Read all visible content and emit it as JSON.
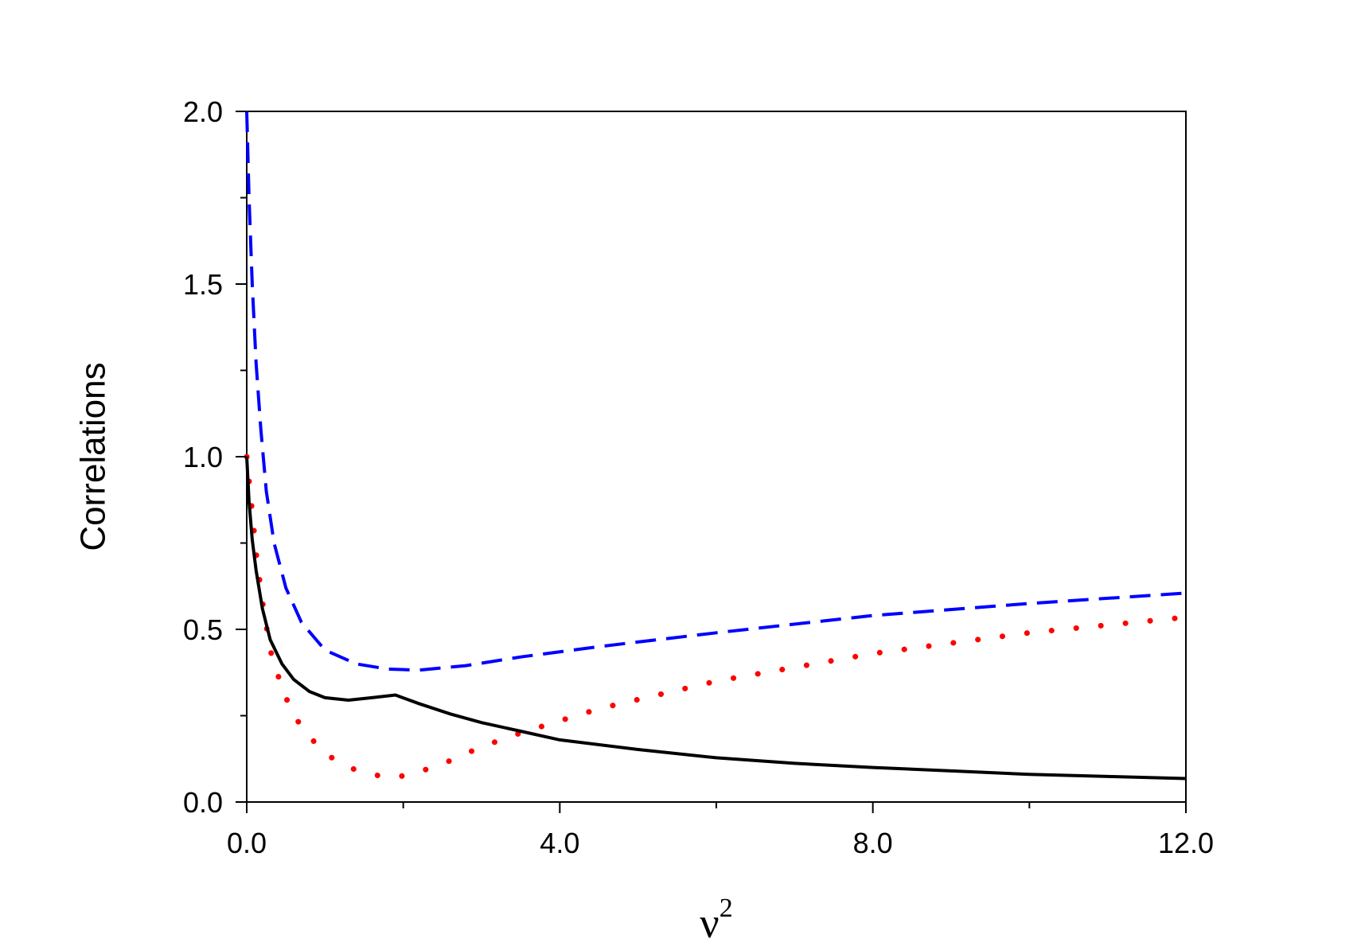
{
  "chart_data": {
    "type": "line",
    "xlabel_base": "ν",
    "xlabel_sup": "2",
    "ylabel": "Correlations",
    "xlim": [
      0,
      12
    ],
    "ylim": [
      0,
      2
    ],
    "x_ticks": [
      0,
      4,
      8,
      12
    ],
    "x_tick_labels": [
      "0.0",
      "4.0",
      "8.0",
      "12.0"
    ],
    "y_ticks": [
      0,
      0.5,
      1,
      1.5,
      2
    ],
    "y_tick_labels": [
      "0.0",
      "0.5",
      "1.0",
      "1.5",
      "2.0"
    ],
    "grid": false,
    "series": [
      {
        "style": "dashed",
        "color": "#0000ff",
        "x": [
          0.0,
          0.03,
          0.07,
          0.12,
          0.18,
          0.25,
          0.35,
          0.5,
          0.7,
          1.0,
          1.4,
          1.8,
          2.2,
          2.8,
          3.5,
          4.5,
          6.0,
          8.0,
          10.0,
          12.0
        ],
        "y": [
          2.0,
          1.75,
          1.5,
          1.27,
          1.08,
          0.9,
          0.75,
          0.62,
          0.52,
          0.44,
          0.4,
          0.385,
          0.382,
          0.395,
          0.42,
          0.45,
          0.49,
          0.54,
          0.575,
          0.605
        ]
      },
      {
        "style": "dotted",
        "color": "#ff0000",
        "x": [
          0.0,
          0.03,
          0.07,
          0.12,
          0.2,
          0.3,
          0.45,
          0.6,
          0.8,
          1.0,
          1.3,
          1.6,
          1.85,
          2.1,
          2.5,
          3.0,
          3.5,
          4.5,
          6.0,
          8.0,
          10.0,
          12.0
        ],
        "y": [
          1.0,
          0.93,
          0.84,
          0.72,
          0.58,
          0.44,
          0.33,
          0.25,
          0.19,
          0.14,
          0.1,
          0.08,
          0.07,
          0.08,
          0.11,
          0.16,
          0.2,
          0.27,
          0.35,
          0.43,
          0.49,
          0.535
        ]
      },
      {
        "style": "solid",
        "color": "#000000",
        "x": [
          0.0,
          0.03,
          0.07,
          0.12,
          0.2,
          0.3,
          0.45,
          0.6,
          0.8,
          1.0,
          1.3,
          1.6,
          1.9,
          2.2,
          2.6,
          3.0,
          3.5,
          4.0,
          5.0,
          6.0,
          7.0,
          8.0,
          9.0,
          10.0,
          11.0,
          12.0
        ],
        "y": [
          1.0,
          0.87,
          0.76,
          0.67,
          0.56,
          0.47,
          0.4,
          0.355,
          0.32,
          0.302,
          0.295,
          0.302,
          0.31,
          0.285,
          0.255,
          0.23,
          0.205,
          0.18,
          0.152,
          0.128,
          0.112,
          0.1,
          0.09,
          0.08,
          0.074,
          0.068
        ]
      }
    ]
  }
}
